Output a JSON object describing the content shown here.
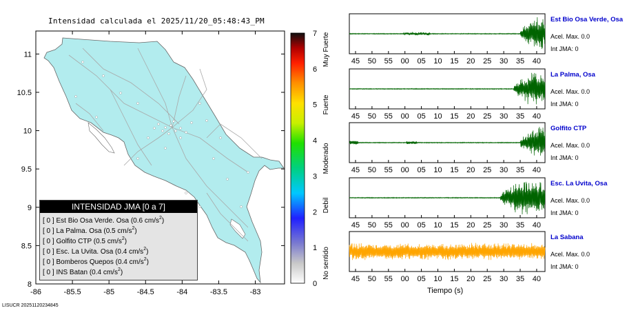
{
  "map": {
    "title": "Intensidad calculada el 2025/11/20_05:48:43_PM",
    "lon_ticks": [
      "-86",
      "-85.5",
      "-85",
      "-84.5",
      "-84",
      "-83.5",
      "-83"
    ],
    "lat_ticks": [
      "11",
      "10.5",
      "10",
      "9.5",
      "9",
      "8.5",
      "8"
    ]
  },
  "colorbar": {
    "ticks": [
      "0",
      "1",
      "2",
      "3",
      "4",
      "5",
      "6",
      "7"
    ],
    "labels": [
      "No sentido",
      "Debil",
      "Moderado",
      "Fuerte",
      "Muy Fuerte"
    ]
  },
  "legend": {
    "title": "INTENSIDAD JMA [0 a 7]",
    "items": [
      {
        "bracket": "[ 0 ]",
        "text": "Est Bio Osa Verde. Osa (0.6 cm/s",
        "sup": "2",
        "close": ")"
      },
      {
        "bracket": "[ 0 ]",
        "text": "La Palma. Osa (0.5 cm/s",
        "sup": "2",
        "close": ")"
      },
      {
        "bracket": "[ 0 ]",
        "text": "Golfito CTP (0.5 cm/s",
        "sup": "2",
        "close": ")"
      },
      {
        "bracket": "[ 0 ]",
        "text": "Esc. La Uvita. Osa (0.4 cm/s",
        "sup": "2",
        "close": ")"
      },
      {
        "bracket": "[ 0 ]",
        "text": "Bomberos Quepos (0.4 cm/s",
        "sup": "2",
        "close": ")"
      },
      {
        "bracket": "[ 0 ]",
        "text": "INS Batan (0.4 cm/s",
        "sup": "2",
        "close": ")"
      }
    ]
  },
  "footer": {
    "id": "LISUCR 20251120234845"
  },
  "chart_data": [
    {
      "type": "map",
      "xlim": [
        -86,
        -82.6
      ],
      "ylim": [
        8,
        11.3
      ],
      "x_ticks": [
        -86,
        -85.5,
        -85,
        -84.5,
        -84,
        -83.5,
        -83
      ],
      "y_ticks": [
        8,
        8.5,
        9,
        9.5,
        10,
        10.5,
        11
      ]
    },
    {
      "type": "line",
      "xlabel": "Tiempo (s)",
      "x_ticks": [
        "45",
        "50",
        "55",
        "00",
        "05",
        "10",
        "15",
        "20",
        "25",
        "30",
        "35",
        "40"
      ],
      "series": [
        {
          "name": "Est Bio Osa Verde, Osa",
          "acel_label": "Acel. Max. 0.0",
          "int_label": "Int JMA: 0",
          "color": "#006400",
          "onset_tick": 35
        },
        {
          "name": "La Palma, Osa",
          "acel_label": "Acel. Max. 0.0",
          "int_label": "Int JMA: 0",
          "color": "#006400",
          "onset_tick": 33
        },
        {
          "name": "Golfito CTP",
          "acel_label": "Acel. Max. 0.0",
          "int_label": "Int JMA: 0",
          "color": "#006400",
          "onset_tick": 35
        },
        {
          "name": "Esc. La Uvita, Osa",
          "acel_label": "Acel. Max. 0.0",
          "int_label": "Int JMA: 0",
          "color": "#006400",
          "onset_tick": 29
        },
        {
          "name": "La Sabana",
          "acel_label": "Acel. Max. 0.0",
          "int_label": "Int JMA: 0",
          "color": "#ffa500",
          "onset_tick": null
        }
      ]
    }
  ]
}
